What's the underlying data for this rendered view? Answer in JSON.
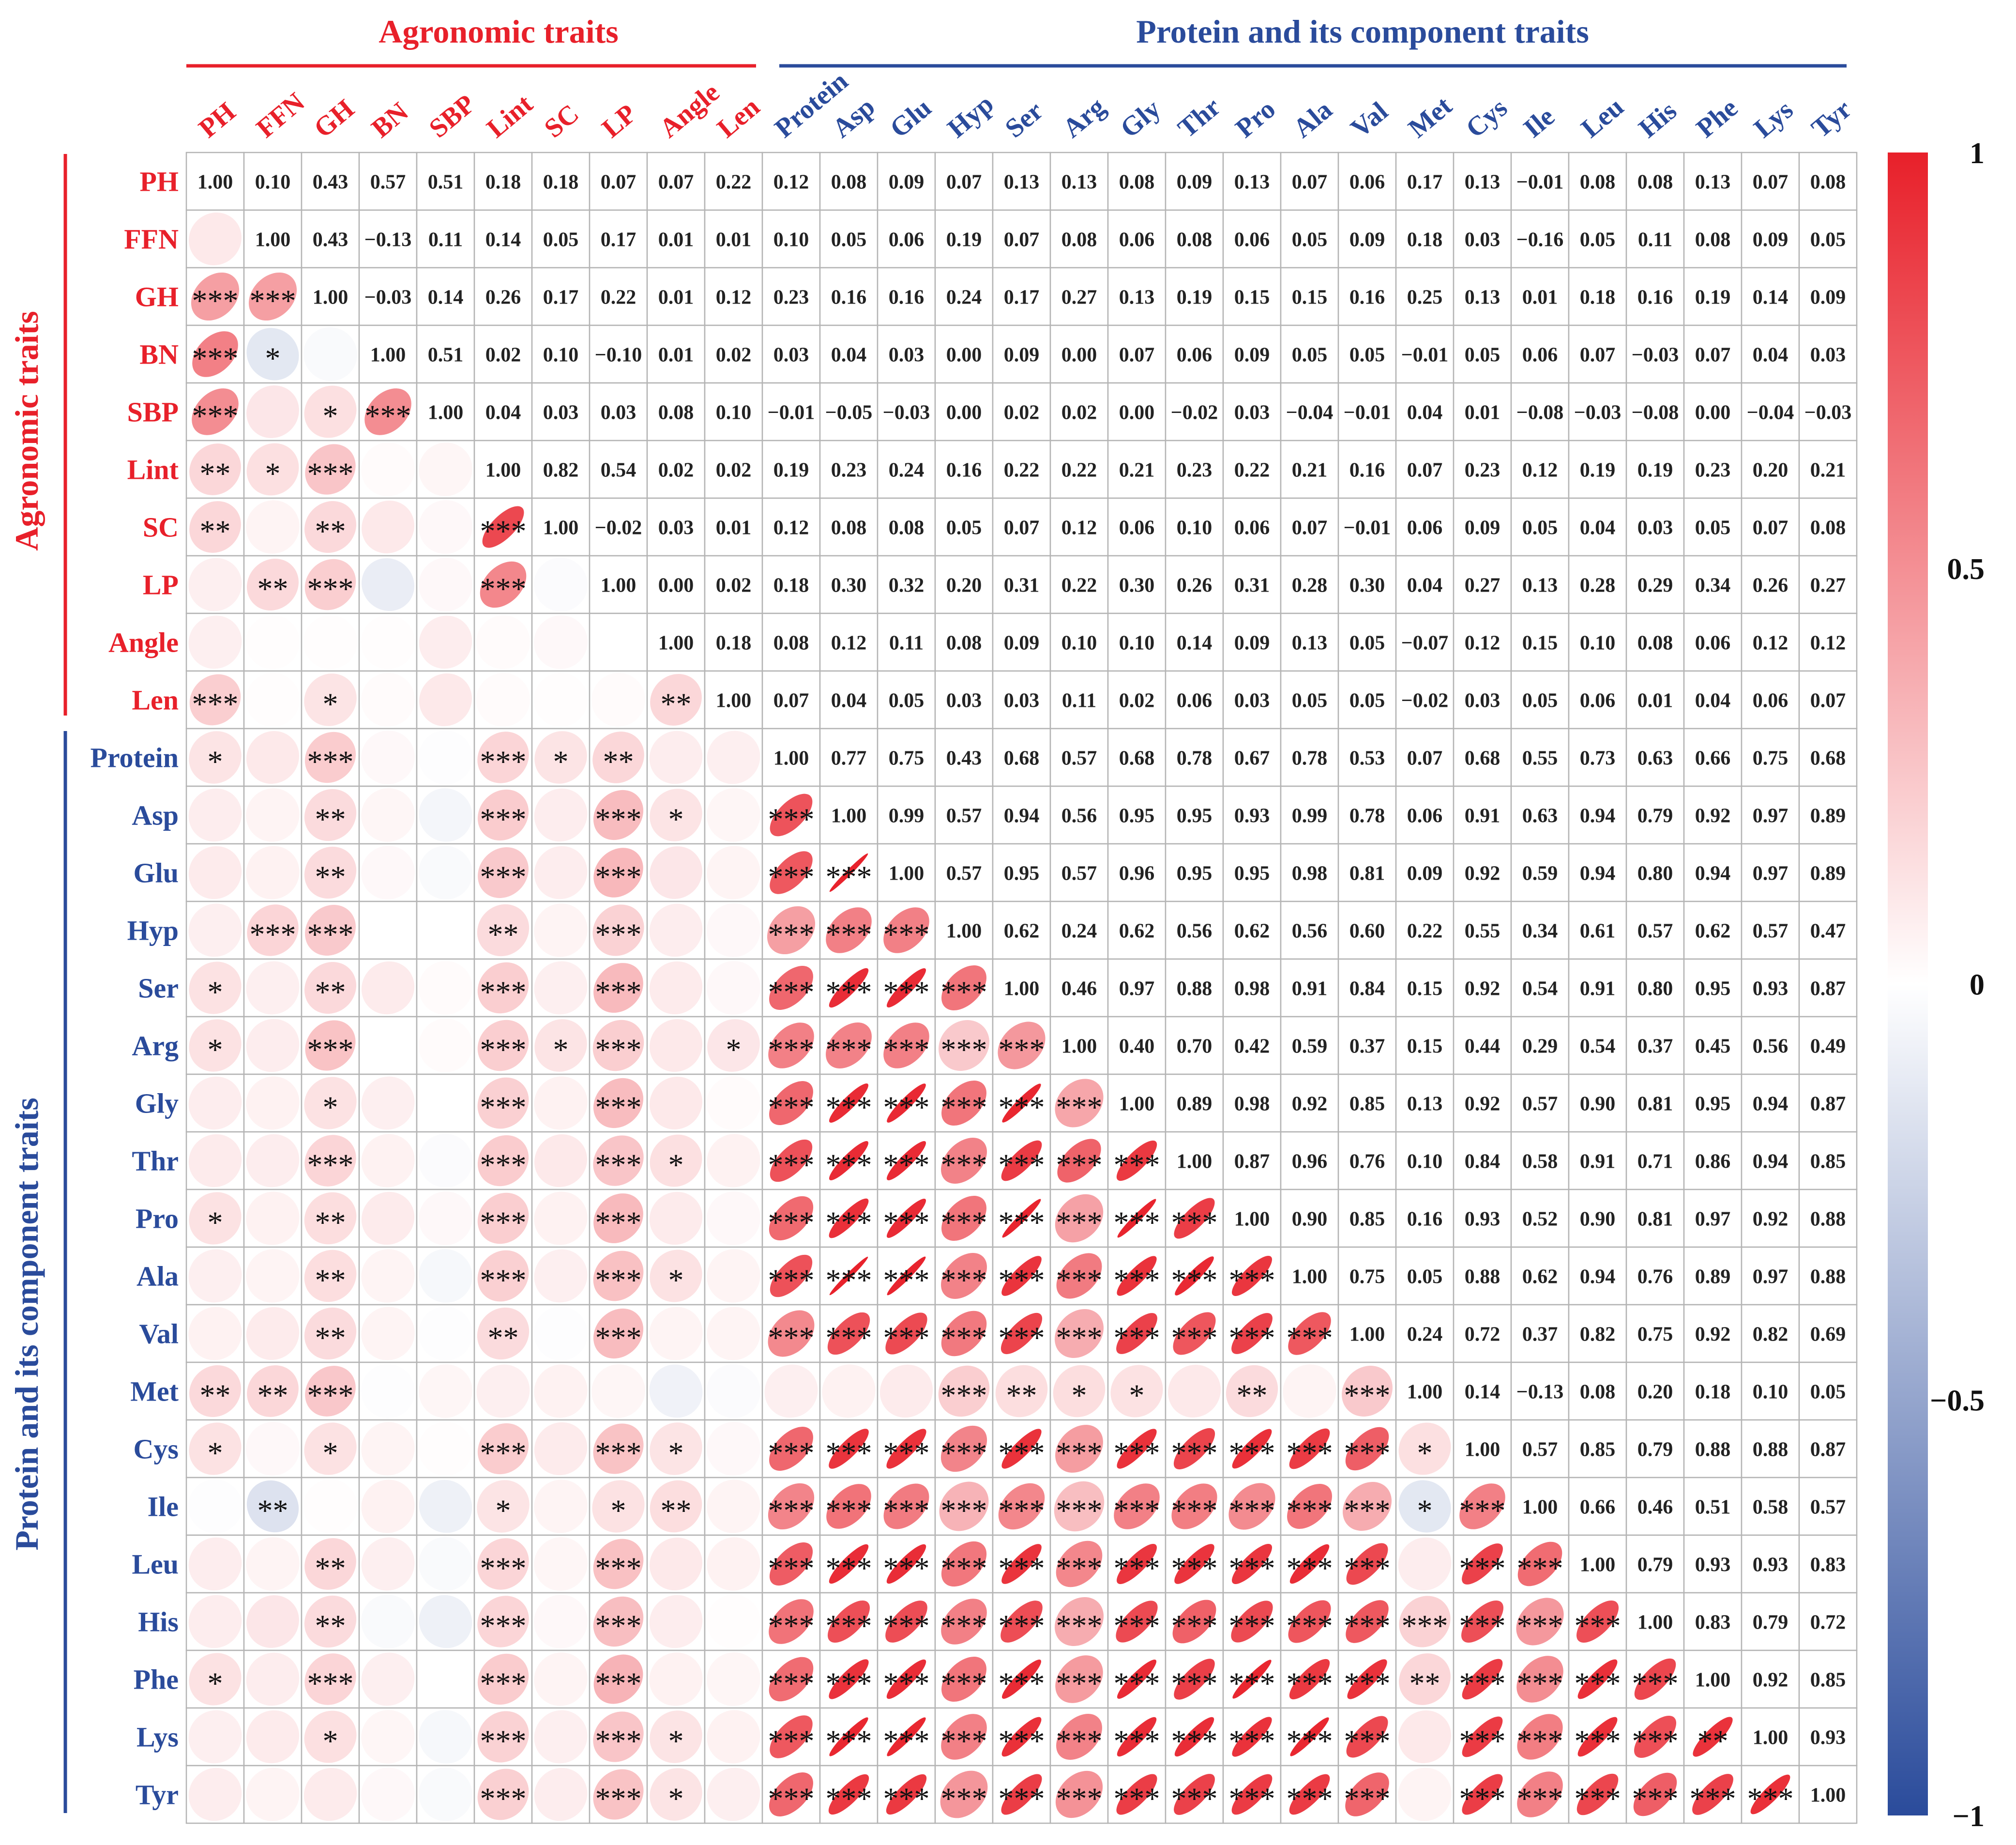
{
  "chart_data": {
    "type": "heatmap",
    "variables": [
      "PH",
      "FFN",
      "GH",
      "BN",
      "SBP",
      "Lint",
      "SC",
      "LP",
      "Angle",
      "Len",
      "Protein",
      "Asp",
      "Glu",
      "Hyp",
      "Ser",
      "Arg",
      "Gly",
      "Thr",
      "Pro",
      "Ala",
      "Val",
      "Met",
      "Cys",
      "Ile",
      "Leu",
      "His",
      "Phe",
      "Lys",
      "Tyr"
    ],
    "groups": [
      {
        "name": "Agronomic traits",
        "start": 0,
        "end": 9,
        "color": "#e8202a"
      },
      {
        "name": "Protein and its component traits",
        "start": 10,
        "end": 28,
        "color": "#2a4b9b"
      }
    ],
    "matrix": [
      [
        1.0,
        0.1,
        0.43,
        0.57,
        0.51,
        0.18,
        0.18,
        0.07,
        0.07,
        0.22,
        0.12,
        0.08,
        0.09,
        0.07,
        0.13,
        0.13,
        0.08,
        0.09,
        0.13,
        0.07,
        0.06,
        0.17,
        0.13,
        -0.01,
        0.08,
        0.08,
        0.13,
        0.07,
        0.08
      ],
      [
        0.1,
        1.0,
        0.43,
        -0.13,
        0.11,
        0.14,
        0.05,
        0.17,
        0.01,
        0.01,
        0.1,
        0.05,
        0.06,
        0.19,
        0.07,
        0.08,
        0.06,
        0.08,
        0.06,
        0.05,
        0.09,
        0.18,
        0.03,
        -0.16,
        0.05,
        0.11,
        0.08,
        0.09,
        0.05
      ],
      [
        0.43,
        0.43,
        1.0,
        -0.03,
        0.14,
        0.26,
        0.17,
        0.22,
        0.01,
        0.12,
        0.23,
        0.16,
        0.16,
        0.24,
        0.17,
        0.27,
        0.13,
        0.19,
        0.15,
        0.15,
        0.16,
        0.25,
        0.13,
        0.01,
        0.18,
        0.16,
        0.19,
        0.14,
        0.09
      ],
      [
        0.57,
        -0.13,
        -0.03,
        1.0,
        0.51,
        0.02,
        0.1,
        -0.1,
        0.01,
        0.02,
        0.03,
        0.04,
        0.03,
        0.0,
        0.09,
        0.0,
        0.07,
        0.06,
        0.09,
        0.05,
        0.05,
        -0.01,
        0.05,
        0.06,
        0.07,
        -0.03,
        0.07,
        0.04,
        0.03
      ],
      [
        0.51,
        0.11,
        0.14,
        0.51,
        1.0,
        0.04,
        0.03,
        0.03,
        0.08,
        0.1,
        -0.01,
        -0.05,
        -0.03,
        0.0,
        0.02,
        0.02,
        0.0,
        -0.02,
        0.03,
        -0.04,
        -0.01,
        0.04,
        0.01,
        -0.08,
        -0.03,
        -0.08,
        0.0,
        -0.04,
        -0.03
      ],
      [
        0.18,
        0.14,
        0.26,
        0.02,
        0.04,
        1.0,
        0.82,
        0.54,
        0.02,
        0.02,
        0.19,
        0.23,
        0.24,
        0.16,
        0.22,
        0.22,
        0.21,
        0.23,
        0.22,
        0.21,
        0.16,
        0.07,
        0.23,
        0.12,
        0.19,
        0.19,
        0.23,
        0.2,
        0.21
      ],
      [
        0.18,
        0.05,
        0.17,
        0.1,
        0.03,
        0.82,
        1.0,
        -0.02,
        0.03,
        0.01,
        0.12,
        0.08,
        0.08,
        0.05,
        0.07,
        0.12,
        0.06,
        0.1,
        0.06,
        0.07,
        -0.01,
        0.06,
        0.09,
        0.05,
        0.04,
        0.03,
        0.05,
        0.07,
        0.08
      ],
      [
        0.07,
        0.17,
        0.22,
        -0.1,
        0.03,
        0.54,
        -0.02,
        1.0,
        0.0,
        0.02,
        0.18,
        0.3,
        0.32,
        0.2,
        0.31,
        0.22,
        0.3,
        0.26,
        0.31,
        0.28,
        0.3,
        0.04,
        0.27,
        0.13,
        0.28,
        0.29,
        0.34,
        0.26,
        0.27
      ],
      [
        0.07,
        0.01,
        0.01,
        0.01,
        0.08,
        0.02,
        0.03,
        0.0,
        1.0,
        0.18,
        0.08,
        0.12,
        0.11,
        0.08,
        0.09,
        0.1,
        0.1,
        0.14,
        0.09,
        0.13,
        0.05,
        -0.07,
        0.12,
        0.15,
        0.1,
        0.08,
        0.06,
        0.12,
        0.12
      ],
      [
        0.22,
        0.01,
        0.12,
        0.02,
        0.1,
        0.02,
        0.01,
        0.02,
        0.18,
        1.0,
        0.07,
        0.04,
        0.05,
        0.03,
        0.03,
        0.11,
        0.02,
        0.06,
        0.03,
        0.05,
        0.05,
        -0.02,
        0.03,
        0.05,
        0.06,
        0.01,
        0.04,
        0.06,
        0.07
      ],
      [
        0.12,
        0.1,
        0.23,
        0.03,
        -0.01,
        0.19,
        0.12,
        0.18,
        0.08,
        0.07,
        1.0,
        0.77,
        0.75,
        0.43,
        0.68,
        0.57,
        0.68,
        0.78,
        0.67,
        0.78,
        0.53,
        0.07,
        0.68,
        0.55,
        0.73,
        0.63,
        0.66,
        0.75,
        0.68
      ],
      [
        0.08,
        0.05,
        0.16,
        0.04,
        -0.05,
        0.23,
        0.08,
        0.3,
        0.12,
        0.04,
        0.77,
        1.0,
        0.99,
        0.57,
        0.94,
        0.56,
        0.95,
        0.95,
        0.93,
        0.99,
        0.78,
        0.06,
        0.91,
        0.63,
        0.94,
        0.79,
        0.92,
        0.97,
        0.89
      ],
      [
        0.09,
        0.06,
        0.16,
        0.03,
        -0.03,
        0.24,
        0.08,
        0.32,
        0.11,
        0.05,
        0.75,
        0.99,
        1.0,
        0.57,
        0.95,
        0.57,
        0.96,
        0.95,
        0.95,
        0.98,
        0.81,
        0.09,
        0.92,
        0.59,
        0.94,
        0.8,
        0.94,
        0.97,
        0.89
      ],
      [
        0.07,
        0.19,
        0.24,
        0.0,
        0.0,
        0.16,
        0.05,
        0.2,
        0.08,
        0.03,
        0.43,
        0.57,
        0.57,
        1.0,
        0.62,
        0.24,
        0.62,
        0.56,
        0.62,
        0.56,
        0.6,
        0.22,
        0.55,
        0.34,
        0.61,
        0.57,
        0.62,
        0.57,
        0.47
      ],
      [
        0.13,
        0.07,
        0.17,
        0.09,
        0.02,
        0.22,
        0.07,
        0.31,
        0.09,
        0.03,
        0.68,
        0.94,
        0.95,
        0.62,
        1.0,
        0.46,
        0.97,
        0.88,
        0.98,
        0.91,
        0.84,
        0.15,
        0.92,
        0.54,
        0.91,
        0.8,
        0.95,
        0.93,
        0.87
      ],
      [
        0.13,
        0.08,
        0.27,
        0.0,
        0.02,
        0.22,
        0.12,
        0.22,
        0.1,
        0.11,
        0.57,
        0.56,
        0.57,
        0.24,
        0.46,
        1.0,
        0.4,
        0.7,
        0.42,
        0.59,
        0.37,
        0.15,
        0.44,
        0.29,
        0.54,
        0.37,
        0.45,
        0.56,
        0.49
      ],
      [
        0.08,
        0.06,
        0.13,
        0.07,
        0.0,
        0.21,
        0.06,
        0.3,
        0.1,
        0.02,
        0.68,
        0.95,
        0.96,
        0.62,
        0.97,
        0.4,
        1.0,
        0.89,
        0.98,
        0.92,
        0.85,
        0.13,
        0.92,
        0.57,
        0.9,
        0.81,
        0.95,
        0.94,
        0.87
      ],
      [
        0.09,
        0.08,
        0.19,
        0.06,
        -0.02,
        0.23,
        0.1,
        0.26,
        0.14,
        0.06,
        0.78,
        0.95,
        0.95,
        0.56,
        0.88,
        0.7,
        0.89,
        1.0,
        0.87,
        0.96,
        0.76,
        0.1,
        0.84,
        0.58,
        0.91,
        0.71,
        0.86,
        0.94,
        0.85
      ],
      [
        0.13,
        0.06,
        0.15,
        0.09,
        0.03,
        0.22,
        0.06,
        0.31,
        0.09,
        0.03,
        0.67,
        0.93,
        0.95,
        0.62,
        0.98,
        0.42,
        0.98,
        0.87,
        1.0,
        0.9,
        0.85,
        0.16,
        0.93,
        0.52,
        0.9,
        0.81,
        0.97,
        0.92,
        0.88
      ],
      [
        0.07,
        0.05,
        0.15,
        0.05,
        -0.04,
        0.21,
        0.07,
        0.28,
        0.13,
        0.05,
        0.78,
        0.99,
        0.98,
        0.56,
        0.91,
        0.59,
        0.92,
        0.96,
        0.9,
        1.0,
        0.75,
        0.05,
        0.88,
        0.62,
        0.94,
        0.76,
        0.89,
        0.97,
        0.88
      ],
      [
        0.06,
        0.09,
        0.16,
        0.05,
        -0.01,
        0.16,
        -0.01,
        0.3,
        0.05,
        0.05,
        0.53,
        0.78,
        0.81,
        0.6,
        0.84,
        0.37,
        0.85,
        0.76,
        0.85,
        0.75,
        1.0,
        0.24,
        0.72,
        0.37,
        0.82,
        0.75,
        0.92,
        0.82,
        0.69
      ],
      [
        0.17,
        0.18,
        0.25,
        -0.01,
        0.04,
        0.07,
        0.06,
        0.04,
        -0.07,
        -0.02,
        0.07,
        0.06,
        0.09,
        0.22,
        0.15,
        0.15,
        0.13,
        0.1,
        0.16,
        0.05,
        0.24,
        1.0,
        0.14,
        -0.13,
        0.08,
        0.2,
        0.18,
        0.1,
        0.05
      ],
      [
        0.13,
        0.03,
        0.13,
        0.05,
        0.01,
        0.23,
        0.09,
        0.27,
        0.12,
        0.03,
        0.68,
        0.91,
        0.92,
        0.55,
        0.92,
        0.44,
        0.92,
        0.84,
        0.93,
        0.88,
        0.72,
        0.14,
        1.0,
        0.57,
        0.85,
        0.79,
        0.88,
        0.88,
        0.87
      ],
      [
        -0.01,
        -0.16,
        0.01,
        0.06,
        -0.08,
        0.12,
        0.05,
        0.13,
        0.15,
        0.05,
        0.55,
        0.63,
        0.59,
        0.34,
        0.54,
        0.29,
        0.57,
        0.58,
        0.52,
        0.62,
        0.37,
        -0.13,
        0.57,
        1.0,
        0.66,
        0.46,
        0.51,
        0.58,
        0.57
      ],
      [
        0.08,
        0.05,
        0.18,
        0.07,
        -0.03,
        0.19,
        0.04,
        0.28,
        0.1,
        0.06,
        0.73,
        0.94,
        0.94,
        0.61,
        0.91,
        0.54,
        0.9,
        0.91,
        0.9,
        0.94,
        0.82,
        0.08,
        0.85,
        0.66,
        1.0,
        0.79,
        0.93,
        0.93,
        0.83
      ],
      [
        0.08,
        0.11,
        0.16,
        -0.03,
        -0.08,
        0.19,
        0.03,
        0.29,
        0.08,
        0.01,
        0.63,
        0.79,
        0.8,
        0.57,
        0.8,
        0.37,
        0.81,
        0.71,
        0.81,
        0.76,
        0.75,
        0.2,
        0.79,
        0.46,
        0.79,
        1.0,
        0.83,
        0.79,
        0.72
      ],
      [
        0.13,
        0.08,
        0.19,
        0.07,
        0.0,
        0.23,
        0.05,
        0.34,
        0.06,
        0.04,
        0.66,
        0.92,
        0.94,
        0.62,
        0.95,
        0.45,
        0.95,
        0.86,
        0.97,
        0.89,
        0.92,
        0.18,
        0.88,
        0.51,
        0.93,
        0.83,
        1.0,
        0.92,
        0.85
      ],
      [
        0.07,
        0.09,
        0.14,
        0.04,
        -0.04,
        0.2,
        0.07,
        0.26,
        0.12,
        0.06,
        0.75,
        0.97,
        0.97,
        0.57,
        0.93,
        0.56,
        0.94,
        0.94,
        0.92,
        0.97,
        0.82,
        0.1,
        0.88,
        0.58,
        0.93,
        0.79,
        0.92,
        1.0,
        0.93
      ],
      [
        0.08,
        0.05,
        0.09,
        0.03,
        -0.03,
        0.21,
        0.08,
        0.27,
        0.12,
        0.07,
        0.68,
        0.89,
        0.89,
        0.47,
        0.87,
        0.49,
        0.87,
        0.85,
        0.88,
        0.88,
        0.69,
        0.05,
        0.87,
        0.57,
        0.83,
        0.72,
        0.85,
        0.93,
        1.0
      ]
    ],
    "significance": [
      [],
      [
        ""
      ],
      [
        "***",
        "***"
      ],
      [
        "***",
        "*",
        ""
      ],
      [
        "***",
        "",
        "*",
        "***"
      ],
      [
        "**",
        "*",
        "***",
        "",
        ""
      ],
      [
        "**",
        "",
        "**",
        "",
        "",
        "***"
      ],
      [
        "",
        "**",
        "***",
        "",
        "",
        "***",
        ""
      ],
      [
        "",
        "",
        "",
        "",
        "",
        "",
        "",
        ""
      ],
      [
        "***",
        "",
        "*",
        "",
        "",
        "",
        "",
        "",
        "**"
      ],
      [
        "*",
        "",
        "***",
        "",
        "",
        "***",
        "*",
        "**",
        "",
        ""
      ],
      [
        "",
        "",
        "**",
        "",
        "",
        "***",
        "",
        "***",
        "*",
        "",
        "***"
      ],
      [
        "",
        "",
        "**",
        "",
        "",
        "***",
        "",
        "***",
        "",
        "",
        "***",
        "***"
      ],
      [
        "",
        "***",
        "***",
        "",
        "",
        "**",
        "",
        "***",
        "",
        "",
        "***",
        "***",
        "***"
      ],
      [
        "*",
        "",
        "**",
        "",
        "",
        "***",
        "",
        "***",
        "",
        "",
        "***",
        "***",
        "***",
        "***"
      ],
      [
        "*",
        "",
        "***",
        "",
        "",
        "***",
        "*",
        "***",
        "",
        "*",
        "***",
        "***",
        "***",
        "***",
        "***"
      ],
      [
        "",
        "",
        "*",
        "",
        "",
        "***",
        "",
        "***",
        "",
        "",
        "***",
        "***",
        "***",
        "***",
        "***",
        "***"
      ],
      [
        "",
        "",
        "***",
        "",
        "",
        "***",
        "",
        "***",
        "*",
        "",
        "***",
        "***",
        "***",
        "***",
        "***",
        "***",
        "***"
      ],
      [
        "*",
        "",
        "**",
        "",
        "",
        "***",
        "",
        "***",
        "",
        "",
        "***",
        "***",
        "***",
        "***",
        "***",
        "***",
        "***",
        "***"
      ],
      [
        "",
        "",
        "**",
        "",
        "",
        "***",
        "",
        "***",
        "*",
        "",
        "***",
        "***",
        "***",
        "***",
        "***",
        "***",
        "***",
        "***",
        "***"
      ],
      [
        "",
        "",
        "**",
        "",
        "",
        "**",
        "",
        "***",
        "",
        "",
        "***",
        "***",
        "***",
        "***",
        "***",
        "***",
        "***",
        "***",
        "***",
        "***"
      ],
      [
        "**",
        "**",
        "***",
        "",
        "",
        "",
        "",
        "",
        "",
        "",
        "",
        "",
        "",
        "***",
        "**",
        "*",
        "*",
        "",
        "**",
        "",
        "***"
      ],
      [
        "*",
        "",
        "*",
        "",
        "",
        "***",
        "",
        "***",
        "*",
        "",
        "***",
        "***",
        "***",
        "***",
        "***",
        "***",
        "***",
        "***",
        "***",
        "***",
        "***",
        "*"
      ],
      [
        "",
        "**",
        "",
        "",
        "",
        "*",
        "",
        "*",
        "**",
        "",
        "***",
        "***",
        "***",
        "***",
        "***",
        "***",
        "***",
        "***",
        "***",
        "***",
        "***",
        "*",
        "***"
      ],
      [
        "",
        "",
        "**",
        "",
        "",
        "***",
        "",
        "***",
        "",
        "",
        "***",
        "***",
        "***",
        "***",
        "***",
        "***",
        "***",
        "***",
        "***",
        "***",
        "***",
        "",
        "***",
        "***"
      ],
      [
        "",
        "",
        "**",
        "",
        "",
        "***",
        "",
        "***",
        "",
        "",
        "***",
        "***",
        "***",
        "***",
        "***",
        "***",
        "***",
        "***",
        "***",
        "***",
        "***",
        "***",
        "***",
        "***",
        "***"
      ],
      [
        "*",
        "",
        "***",
        "",
        "",
        "***",
        "",
        "***",
        "",
        "",
        "***",
        "***",
        "***",
        "***",
        "***",
        "***",
        "***",
        "***",
        "***",
        "***",
        "***",
        "**",
        "***",
        "***",
        "***",
        "***"
      ],
      [
        "",
        "",
        "*",
        "",
        "",
        "***",
        "",
        "***",
        "*",
        "",
        "***",
        "***",
        "***",
        "***",
        "***",
        "***",
        "***",
        "***",
        "***",
        "***",
        "***",
        "",
        "***",
        "***",
        "***",
        "***",
        "**"
      ],
      [
        "",
        "",
        "",
        "",
        "",
        "***",
        "",
        "***",
        "*",
        "",
        "***",
        "***",
        "***",
        "***",
        "***",
        "***",
        "***",
        "***",
        "***",
        "***",
        "***",
        "",
        "***",
        "***",
        "***",
        "***",
        "***",
        "***"
      ]
    ],
    "colorbar": {
      "min": -1,
      "max": 1,
      "ticks": [
        1,
        0.5,
        0,
        -0.5,
        -1
      ],
      "tick_labels": [
        "1",
        "0.5",
        "0",
        "−0.5",
        "−1"
      ],
      "colors": {
        "negative": "#2a4b9b",
        "zero": "#ffffff",
        "positive": "#e8202a"
      }
    },
    "upper_triangle": "numbers",
    "lower_triangle": "ellipses"
  }
}
